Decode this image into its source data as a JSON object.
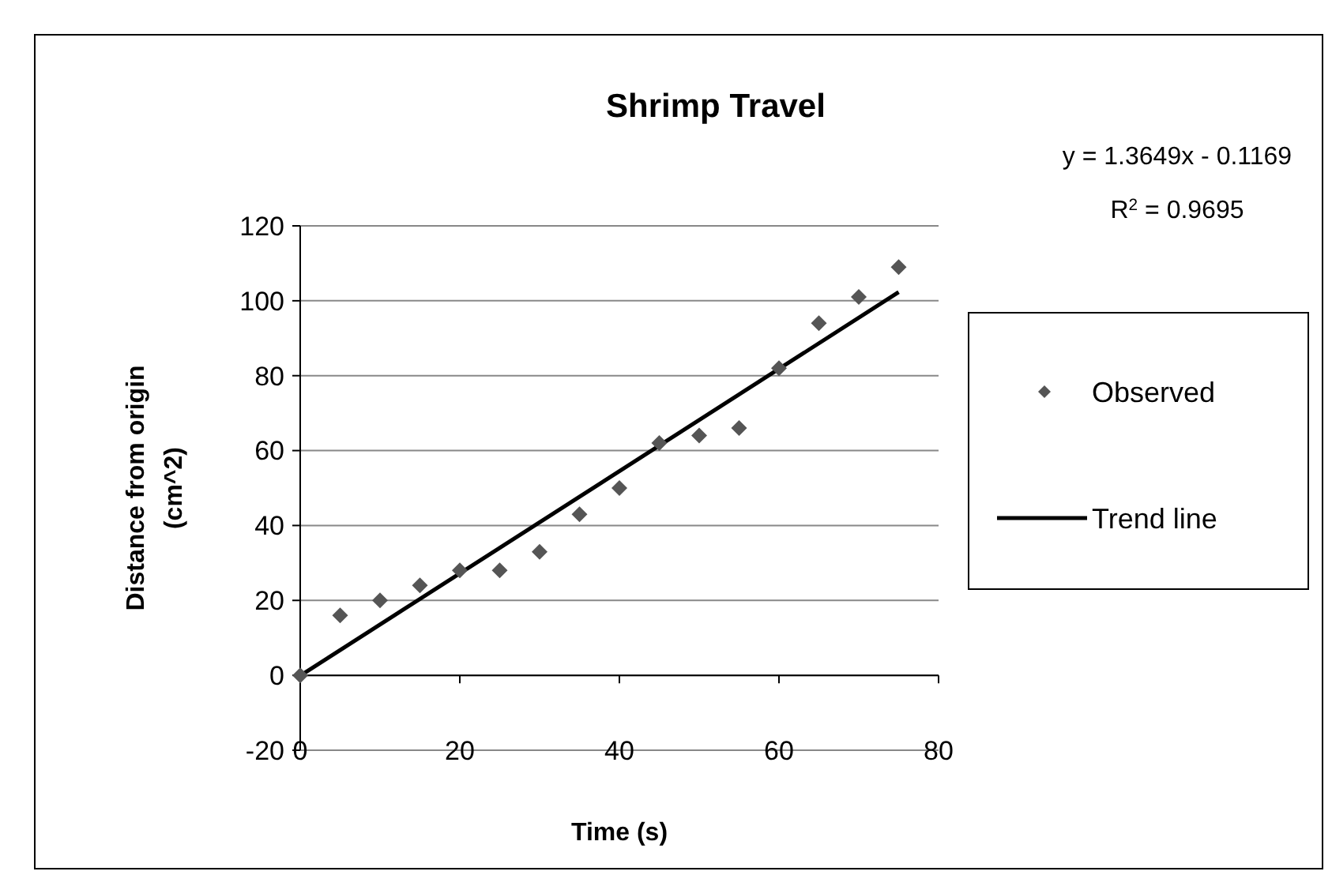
{
  "chart_data": {
    "type": "scatter",
    "title": "Shrimp Travel",
    "xlabel": "Time (s)",
    "ylabel": "Distance from origin (cm^2)",
    "x": [
      0,
      5,
      10,
      15,
      20,
      25,
      30,
      35,
      40,
      45,
      50,
      55,
      60,
      65,
      70,
      75
    ],
    "series": [
      {
        "name": "Observed",
        "color": "#555555",
        "marker": "diamond",
        "values": [
          0,
          16,
          20,
          24,
          28,
          28,
          33,
          43,
          50,
          62,
          64,
          66,
          82,
          94,
          101,
          109
        ]
      },
      {
        "name": "Trend line",
        "type": "line",
        "color": "#000000",
        "x": [
          0,
          75
        ],
        "values": [
          -0.1,
          102.3
        ]
      }
    ],
    "xlim": [
      0,
      80
    ],
    "xticks": [
      0,
      20,
      40,
      60,
      80
    ],
    "ylim": [
      -20,
      120
    ],
    "yticks": [
      -20,
      0,
      20,
      40,
      60,
      80,
      100,
      120
    ],
    "grid": "y",
    "legend": "right",
    "annotations": [
      "y = 1.3649x - 0.1169",
      "R$^{2}$ = 0.9695"
    ]
  }
}
